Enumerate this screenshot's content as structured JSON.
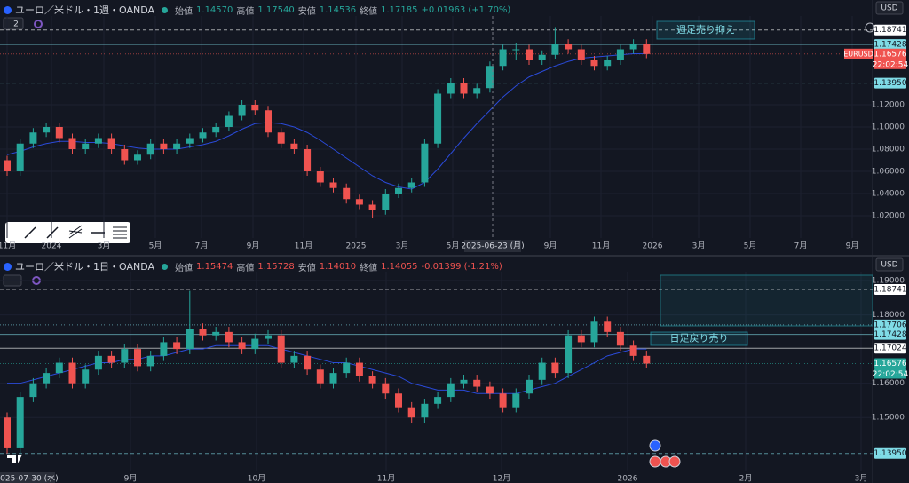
{
  "chart_data": [
    {
      "type": "candlestick",
      "title": "ユーロ／米ドル・1週・OANDA",
      "ohlc": [
        {
          "label": "始値",
          "value": "1.14570"
        },
        {
          "label": "高値",
          "value": "1.17540"
        },
        {
          "label": "安値",
          "value": "1.14536"
        },
        {
          "label": "終値",
          "value": "1.17185"
        }
      ],
      "change": "+0.01963 (+1.70%)",
      "ohlc_color": "#26a69a",
      "currency": "USD",
      "layout_count": "2",
      "crosshair_label": "2025-06-23 (月)",
      "symbol_tag": "EURUSD",
      "countdown": "22:02:54",
      "annotation": "週足売り抑え",
      "up_color": "#26a69a",
      "down_color": "#ef5350",
      "ma_color": "#2a4ad8",
      "ylim": [
        1.0,
        1.2
      ],
      "yticks": [
        {
          "value": 1.02,
          "label": "1.02000"
        },
        {
          "value": 1.04,
          "label": "1.04000"
        },
        {
          "value": 1.06,
          "label": "1.06000"
        },
        {
          "value": 1.08,
          "label": "1.08000"
        },
        {
          "value": 1.1,
          "label": "1.10000"
        },
        {
          "value": 1.12,
          "label": "1.12000"
        }
      ],
      "time_labels": [
        "11月",
        "2024",
        "3月",
        "5月",
        "7月",
        "9月",
        "11月",
        "2025",
        "3月",
        "5月",
        "9月",
        "11月",
        "2026",
        "3月",
        "5月",
        "7月",
        "9月"
      ],
      "levels": [
        {
          "value": 1.18741,
          "label": "1.18741",
          "color": "#ffffff",
          "text_color": "#131722",
          "line": "dashed"
        },
        {
          "value": 1.17428,
          "label": "1.17428",
          "color": "#7fdbe6",
          "text_color": "#131722",
          "line": "solid"
        },
        {
          "value": 1.16576,
          "label": "1.16576",
          "color": "#ef5350",
          "text_color": "#ffffff",
          "line": "dotted"
        },
        {
          "value": 1.1395,
          "label": "1.13950",
          "color": "#7fdbe6",
          "text_color": "#131722",
          "line": "dashed"
        }
      ],
      "candles": [
        [
          1.07,
          1.074,
          1.056,
          1.06
        ],
        [
          1.06,
          1.089,
          1.056,
          1.085
        ],
        [
          1.085,
          1.099,
          1.081,
          1.095
        ],
        [
          1.095,
          1.104,
          1.091,
          1.1
        ],
        [
          1.1,
          1.104,
          1.086,
          1.09
        ],
        [
          1.09,
          1.094,
          1.076,
          1.08
        ],
        [
          1.08,
          1.089,
          1.076,
          1.085
        ],
        [
          1.085,
          1.094,
          1.081,
          1.09
        ],
        [
          1.09,
          1.094,
          1.076,
          1.08
        ],
        [
          1.08,
          1.084,
          1.066,
          1.07
        ],
        [
          1.07,
          1.079,
          1.066,
          1.075
        ],
        [
          1.075,
          1.089,
          1.071,
          1.085
        ],
        [
          1.085,
          1.089,
          1.076,
          1.08
        ],
        [
          1.08,
          1.089,
          1.076,
          1.085
        ],
        [
          1.085,
          1.094,
          1.081,
          1.09
        ],
        [
          1.09,
          1.099,
          1.086,
          1.095
        ],
        [
          1.095,
          1.104,
          1.091,
          1.1
        ],
        [
          1.1,
          1.114,
          1.096,
          1.11
        ],
        [
          1.11,
          1.124,
          1.106,
          1.12
        ],
        [
          1.12,
          1.124,
          1.111,
          1.115
        ],
        [
          1.115,
          1.119,
          1.091,
          1.095
        ],
        [
          1.095,
          1.099,
          1.081,
          1.085
        ],
        [
          1.085,
          1.089,
          1.076,
          1.08
        ],
        [
          1.08,
          1.084,
          1.056,
          1.06
        ],
        [
          1.06,
          1.064,
          1.046,
          1.05
        ],
        [
          1.05,
          1.054,
          1.041,
          1.045
        ],
        [
          1.045,
          1.049,
          1.031,
          1.035
        ],
        [
          1.035,
          1.039,
          1.026,
          1.03
        ],
        [
          1.03,
          1.034,
          1.018,
          1.025
        ],
        [
          1.025,
          1.044,
          1.021,
          1.04
        ],
        [
          1.04,
          1.049,
          1.036,
          1.045
        ],
        [
          1.045,
          1.054,
          1.041,
          1.05
        ],
        [
          1.05,
          1.089,
          1.046,
          1.085
        ],
        [
          1.085,
          1.134,
          1.081,
          1.13
        ],
        [
          1.13,
          1.144,
          1.126,
          1.14
        ],
        [
          1.14,
          1.144,
          1.126,
          1.13
        ],
        [
          1.13,
          1.139,
          1.126,
          1.135
        ],
        [
          1.135,
          1.159,
          1.131,
          1.155
        ],
        [
          1.155,
          1.174,
          1.151,
          1.17
        ],
        [
          1.17,
          1.176,
          1.16,
          1.17
        ],
        [
          1.17,
          1.174,
          1.156,
          1.16
        ],
        [
          1.16,
          1.169,
          1.156,
          1.165
        ],
        [
          1.165,
          1.19,
          1.161,
          1.175
        ],
        [
          1.175,
          1.179,
          1.166,
          1.17
        ],
        [
          1.17,
          1.174,
          1.156,
          1.16
        ],
        [
          1.16,
          1.164,
          1.151,
          1.155
        ],
        [
          1.155,
          1.164,
          1.151,
          1.16
        ],
        [
          1.16,
          1.174,
          1.156,
          1.17
        ],
        [
          1.17,
          1.179,
          1.166,
          1.175
        ],
        [
          1.175,
          1.179,
          1.162,
          1.16576
        ]
      ],
      "ma_values": [
        1.075,
        1.078,
        1.082,
        1.085,
        1.087,
        1.087,
        1.086,
        1.086,
        1.085,
        1.083,
        1.081,
        1.08,
        1.08,
        1.08,
        1.082,
        1.084,
        1.087,
        1.092,
        1.098,
        1.103,
        1.104,
        1.103,
        1.1,
        1.095,
        1.088,
        1.08,
        1.072,
        1.064,
        1.056,
        1.05,
        1.046,
        1.044,
        1.05,
        1.062,
        1.076,
        1.09,
        1.103,
        1.115,
        1.127,
        1.137,
        1.145,
        1.15,
        1.155,
        1.159,
        1.162,
        1.163,
        1.164,
        1.165,
        1.166,
        1.166
      ]
    },
    {
      "type": "candlestick",
      "title": "ユーロ／米ドル・1日・OANDA",
      "ohlc": [
        {
          "label": "始値",
          "value": "1.15474"
        },
        {
          "label": "高値",
          "value": "1.15728"
        },
        {
          "label": "安値",
          "value": "1.14010"
        },
        {
          "label": "終値",
          "value": "1.14055"
        }
      ],
      "change": "-0.01399 (-1.21%)",
      "ohlc_color": "#ef5350",
      "currency": "USD",
      "crosshair_label": "2025-07-30 (水)",
      "countdown": "22:02:54",
      "annotation": "日足戻り売り",
      "up_color": "#26a69a",
      "down_color": "#ef5350",
      "ma_color": "#2a4ad8",
      "ylim": [
        1.1345,
        1.1926
      ],
      "yticks": [
        {
          "value": 1.15,
          "label": "1.15000"
        },
        {
          "value": 1.16,
          "label": "1.16000"
        },
        {
          "value": 1.18,
          "label": "1.18000"
        },
        {
          "value": 1.19,
          "label": "1.19000"
        }
      ],
      "time_labels": [
        "9月",
        "10月",
        "11月",
        "12月",
        "2026",
        "2月",
        "3月"
      ],
      "levels": [
        {
          "value": 1.18741,
          "label": "1.18741",
          "color": "#ffffff",
          "text_color": "#131722",
          "line": "dashed"
        },
        {
          "value": 1.17706,
          "label": "1.17706",
          "color": "#7fdbe6",
          "text_color": "#131722",
          "line": "dotted"
        },
        {
          "value": 1.17428,
          "label": "1.17428",
          "color": "#7fdbe6",
          "text_color": "#131722",
          "line": "solid"
        },
        {
          "value": 1.17024,
          "label": "1.17024",
          "color": "#ffffff",
          "text_color": "#131722",
          "line": "solid"
        },
        {
          "value": 1.16576,
          "label": "1.16576",
          "color": "#26a69a",
          "text_color": "#ffffff",
          "line": "dotted"
        },
        {
          "value": 1.1395,
          "label": "1.13950",
          "color": "#7fdbe6",
          "text_color": "#131722",
          "line": "dashed"
        }
      ],
      "candles": [
        [
          1.15,
          1.1515,
          1.1395,
          1.141
        ],
        [
          1.141,
          1.1575,
          1.1395,
          1.156
        ],
        [
          1.156,
          1.1615,
          1.1545,
          1.16
        ],
        [
          1.16,
          1.1645,
          1.1585,
          1.163
        ],
        [
          1.163,
          1.1675,
          1.1615,
          1.166
        ],
        [
          1.166,
          1.1675,
          1.1585,
          1.16
        ],
        [
          1.16,
          1.1655,
          1.1585,
          1.164
        ],
        [
          1.164,
          1.1695,
          1.1625,
          1.168
        ],
        [
          1.168,
          1.1695,
          1.1645,
          1.166
        ],
        [
          1.166,
          1.1715,
          1.1645,
          1.17
        ],
        [
          1.17,
          1.1715,
          1.1635,
          1.165
        ],
        [
          1.165,
          1.1695,
          1.1635,
          1.168
        ],
        [
          1.168,
          1.1735,
          1.1665,
          1.172
        ],
        [
          1.172,
          1.1735,
          1.1685,
          1.17
        ],
        [
          1.17,
          1.187,
          1.1685,
          1.176
        ],
        [
          1.176,
          1.1775,
          1.1725,
          1.174
        ],
        [
          1.174,
          1.1765,
          1.1725,
          1.175
        ],
        [
          1.175,
          1.1765,
          1.1705,
          1.172
        ],
        [
          1.172,
          1.1735,
          1.1685,
          1.17
        ],
        [
          1.17,
          1.1745,
          1.1685,
          1.173
        ],
        [
          1.173,
          1.1755,
          1.1715,
          1.174
        ],
        [
          1.174,
          1.1755,
          1.1645,
          1.166
        ],
        [
          1.166,
          1.1695,
          1.1645,
          1.168
        ],
        [
          1.168,
          1.1695,
          1.1625,
          1.164
        ],
        [
          1.164,
          1.1655,
          1.1585,
          1.16
        ],
        [
          1.16,
          1.1645,
          1.1585,
          1.163
        ],
        [
          1.163,
          1.1675,
          1.1615,
          1.166
        ],
        [
          1.166,
          1.1675,
          1.1605,
          1.162
        ],
        [
          1.162,
          1.1635,
          1.1585,
          1.16
        ],
        [
          1.16,
          1.1615,
          1.1555,
          1.157
        ],
        [
          1.157,
          1.1585,
          1.1515,
          1.153
        ],
        [
          1.153,
          1.1545,
          1.1485,
          1.15
        ],
        [
          1.15,
          1.1555,
          1.1485,
          1.154
        ],
        [
          1.154,
          1.1575,
          1.1525,
          1.156
        ],
        [
          1.156,
          1.1615,
          1.1545,
          1.16
        ],
        [
          1.16,
          1.1625,
          1.1585,
          1.161
        ],
        [
          1.161,
          1.1625,
          1.1575,
          1.159
        ],
        [
          1.159,
          1.1605,
          1.1555,
          1.157
        ],
        [
          1.157,
          1.1585,
          1.1515,
          1.153
        ],
        [
          1.153,
          1.1585,
          1.1515,
          1.157
        ],
        [
          1.157,
          1.1625,
          1.1555,
          1.161
        ],
        [
          1.161,
          1.1675,
          1.1595,
          1.166
        ],
        [
          1.166,
          1.1675,
          1.1615,
          1.163
        ],
        [
          1.163,
          1.1755,
          1.1615,
          1.174
        ],
        [
          1.174,
          1.1755,
          1.1705,
          1.172
        ],
        [
          1.172,
          1.1795,
          1.1705,
          1.178
        ],
        [
          1.178,
          1.1795,
          1.1735,
          1.175
        ],
        [
          1.175,
          1.1765,
          1.1695,
          1.171
        ],
        [
          1.171,
          1.1725,
          1.1665,
          1.168
        ],
        [
          1.168,
          1.1695,
          1.1645,
          1.16576
        ]
      ],
      "ma_values": [
        1.16,
        1.16,
        1.161,
        1.162,
        1.163,
        1.164,
        1.165,
        1.166,
        1.166,
        1.167,
        1.167,
        1.168,
        1.168,
        1.169,
        1.17,
        1.17,
        1.171,
        1.171,
        1.171,
        1.171,
        1.171,
        1.17,
        1.169,
        1.168,
        1.167,
        1.166,
        1.166,
        1.165,
        1.164,
        1.163,
        1.162,
        1.16,
        1.159,
        1.158,
        1.158,
        1.158,
        1.157,
        1.157,
        1.157,
        1.157,
        1.158,
        1.159,
        1.16,
        1.162,
        1.164,
        1.166,
        1.168,
        1.169,
        1.17,
        1.17
      ]
    }
  ]
}
